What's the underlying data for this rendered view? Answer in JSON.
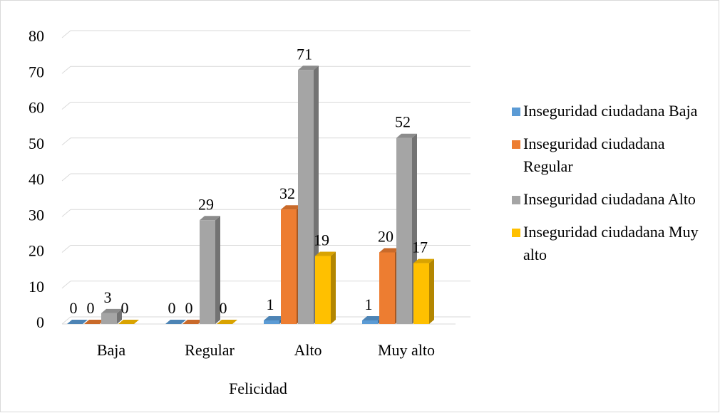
{
  "chart_data": {
    "type": "bar3d",
    "categories": [
      "Baja",
      "Regular",
      "Alto",
      "Muy alto"
    ],
    "series": [
      {
        "name": "Inseguridad ciudadana Baja",
        "color": "#5b9bd5",
        "values": [
          0,
          0,
          1,
          1
        ]
      },
      {
        "name": "Inseguridad ciudadana Regular",
        "color": "#ed7d31",
        "values": [
          0,
          0,
          32,
          20
        ]
      },
      {
        "name": "Inseguridad ciudadana Alto",
        "color": "#a5a5a5",
        "values": [
          3,
          29,
          71,
          52
        ]
      },
      {
        "name": "Inseguridad ciudadana Muy alto",
        "color": "#ffc000",
        "values": [
          0,
          0,
          19,
          17
        ]
      }
    ],
    "xlabel": "Felicidad",
    "ylim": [
      0,
      80
    ],
    "yticks": [
      0,
      10,
      20,
      30,
      40,
      50,
      60,
      70,
      80
    ],
    "grid": true,
    "legend": "right"
  }
}
